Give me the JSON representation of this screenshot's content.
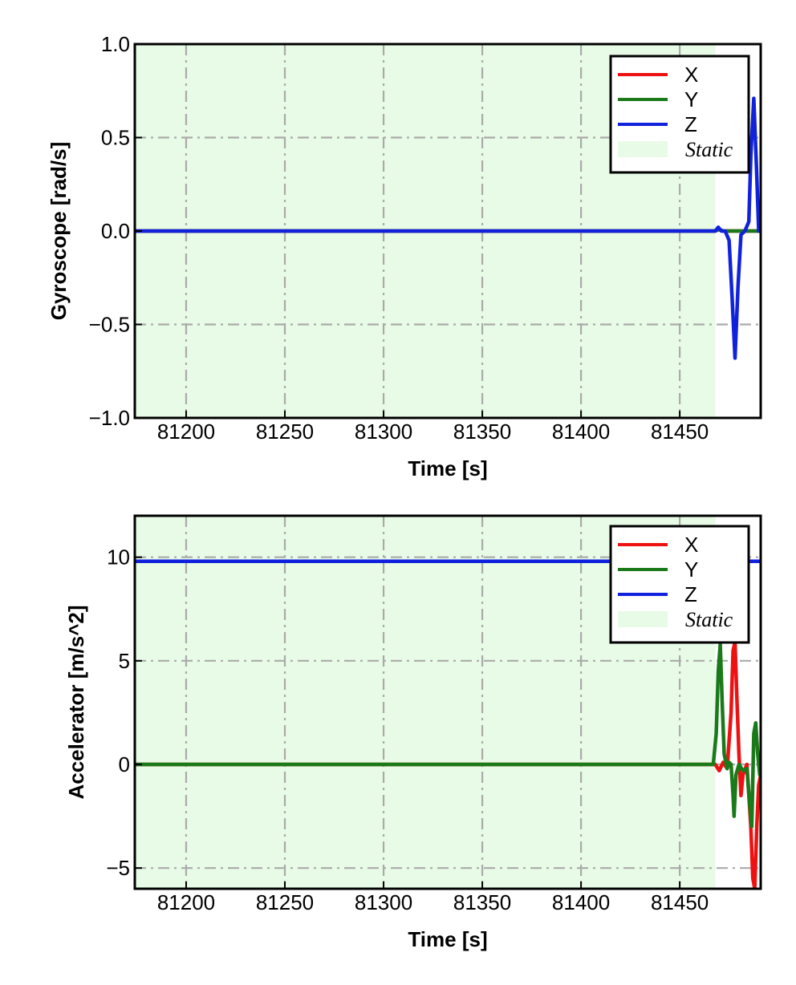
{
  "colors": {
    "X": "#ee1111",
    "Y": "#1a7a1a",
    "Z": "#1122dd",
    "static_fill": "#e8fbe6",
    "grid": "#aaaaaa"
  },
  "chart_data": [
    {
      "type": "line",
      "title": "",
      "xlabel": "Time [s]",
      "ylabel": "Gyroscope [rad/s]",
      "xlim": [
        81174,
        81491
      ],
      "ylim": [
        -1.0,
        1.0
      ],
      "xticks": [
        81200,
        81250,
        81300,
        81350,
        81400,
        81450
      ],
      "xtick_labels": [
        "81200",
        "81250",
        "81300",
        "81350",
        "81400",
        "81450"
      ],
      "yticks": [
        -1.0,
        -0.5,
        0.0,
        0.5,
        1.0
      ],
      "ytick_labels": [
        "−1.0",
        "−0.5",
        "0.0",
        "0.5",
        "1.0"
      ],
      "grid": true,
      "legend_position": "top-right",
      "legend": [
        "X",
        "Y",
        "Z",
        "Static"
      ],
      "static_region": [
        81174,
        81468
      ],
      "series": [
        {
          "name": "X",
          "x": [
            81174,
            81468,
            81470,
            81472,
            81478,
            81480,
            81486,
            81488,
            81491
          ],
          "y": [
            0,
            0,
            0.01,
            0,
            0,
            0,
            0,
            0,
            0
          ]
        },
        {
          "name": "Y",
          "x": [
            81174,
            81468,
            81470,
            81472,
            81478,
            81482,
            81486,
            81491
          ],
          "y": [
            0,
            0,
            0.01,
            0,
            0,
            0,
            0,
            0
          ]
        },
        {
          "name": "Z",
          "x": [
            81174,
            81468,
            81469.5,
            81471,
            81473,
            81475,
            81476.5,
            81478,
            81479.5,
            81481,
            81483,
            81485,
            81486,
            81487.5,
            81489,
            81490,
            81491
          ],
          "y": [
            0,
            0,
            0.02,
            0,
            0,
            -0.05,
            -0.35,
            -0.68,
            -0.3,
            -0.02,
            0,
            0.05,
            0.4,
            0.71,
            0.3,
            0,
            0
          ]
        }
      ]
    },
    {
      "type": "line",
      "title": "",
      "xlabel": "Time [s]",
      "ylabel": "Accelerator [m/s^2]",
      "xlim": [
        81174,
        81491
      ],
      "ylim": [
        -6.0,
        12.0
      ],
      "xticks": [
        81200,
        81250,
        81300,
        81350,
        81400,
        81450
      ],
      "xtick_labels": [
        "81200",
        "81250",
        "81300",
        "81350",
        "81400",
        "81450"
      ],
      "yticks": [
        -5,
        0,
        5,
        10
      ],
      "ytick_labels": [
        "−5",
        "0",
        "5",
        "10"
      ],
      "grid": true,
      "legend_position": "top-right",
      "legend": [
        "X",
        "Y",
        "Z",
        "Static"
      ],
      "static_region": [
        81174,
        81468
      ],
      "series": [
        {
          "name": "X",
          "x": [
            81174,
            81468,
            81470,
            81472,
            81474,
            81476,
            81477,
            81478,
            81479,
            81480,
            81481,
            81482,
            81484,
            81486,
            81487,
            81488,
            81489,
            81490,
            81491
          ],
          "y": [
            0,
            0,
            -0.3,
            0.1,
            -0.2,
            2.5,
            5.5,
            5.9,
            3.0,
            0.5,
            -1.5,
            -0.5,
            0.0,
            -3.0,
            -5.5,
            -6.0,
            -3.0,
            -1.0,
            -0.5
          ]
        },
        {
          "name": "Y",
          "x": [
            81174,
            81467,
            81468.5,
            81469.5,
            81470.5,
            81471.5,
            81472.5,
            81474,
            81475,
            81476,
            81477,
            81477.5,
            81478.5,
            81480,
            81482,
            81484,
            81485.5,
            81486.5,
            81487.5,
            81488.5,
            81489.5,
            81490.5,
            81491
          ],
          "y": [
            0,
            0,
            1.5,
            4.5,
            5.8,
            3.0,
            0.5,
            -0.2,
            0.1,
            0.0,
            -1.5,
            -2.5,
            -0.5,
            0.0,
            -0.3,
            -0.2,
            -2.0,
            -3.0,
            1.5,
            2.0,
            0.5,
            -0.5,
            0.0
          ]
        },
        {
          "name": "Z",
          "x": [
            81174,
            81200,
            81250,
            81300,
            81350,
            81400,
            81440,
            81468,
            81474,
            81484,
            81491
          ],
          "y": [
            9.8,
            9.8,
            9.8,
            9.8,
            9.8,
            9.8,
            9.8,
            9.8,
            9.8,
            9.8,
            9.8
          ]
        }
      ]
    }
  ]
}
